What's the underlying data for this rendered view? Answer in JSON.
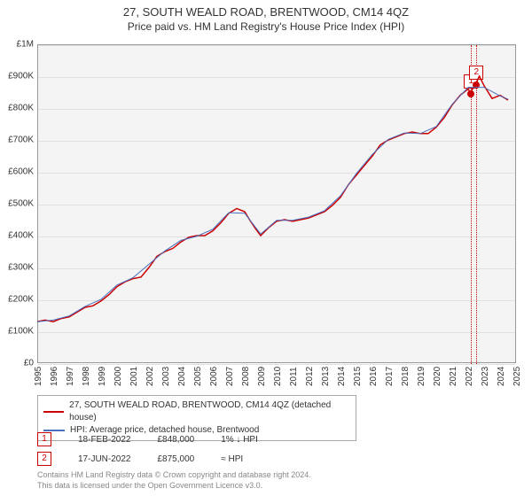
{
  "title": "27, SOUTH WEALD ROAD, BRENTWOOD, CM14 4QZ",
  "subtitle": "Price paid vs. HM Land Registry's House Price Index (HPI)",
  "chart": {
    "type": "line",
    "background_color": "#f4f4f4",
    "grid_color": "#e0e0e0",
    "border_color": "#999999",
    "xlim": [
      1995,
      2025
    ],
    "ylim": [
      0,
      1000000
    ],
    "ytick_step": 100000,
    "yticks": [
      {
        "v": 0,
        "label": "£0"
      },
      {
        "v": 100000,
        "label": "£100K"
      },
      {
        "v": 200000,
        "label": "£200K"
      },
      {
        "v": 300000,
        "label": "£300K"
      },
      {
        "v": 400000,
        "label": "£400K"
      },
      {
        "v": 500000,
        "label": "£500K"
      },
      {
        "v": 600000,
        "label": "£600K"
      },
      {
        "v": 700000,
        "label": "£700K"
      },
      {
        "v": 800000,
        "label": "£800K"
      },
      {
        "v": 900000,
        "label": "£900K"
      },
      {
        "v": 1000000,
        "label": "£1M"
      }
    ],
    "xticks": [
      1995,
      1996,
      1997,
      1998,
      1999,
      2000,
      2001,
      2002,
      2003,
      2004,
      2005,
      2006,
      2007,
      2008,
      2009,
      2010,
      2011,
      2012,
      2013,
      2014,
      2015,
      2016,
      2017,
      2018,
      2019,
      2020,
      2021,
      2022,
      2023,
      2024,
      2025
    ],
    "series": [
      {
        "name": "price_paid",
        "color": "#cc0000",
        "line_width": 1.5,
        "points": [
          [
            1995,
            130000
          ],
          [
            1995.5,
            135000
          ],
          [
            1996,
            130000
          ],
          [
            1996.5,
            140000
          ],
          [
            1997,
            145000
          ],
          [
            1997.5,
            160000
          ],
          [
            1998,
            175000
          ],
          [
            1998.5,
            180000
          ],
          [
            1999,
            195000
          ],
          [
            1999.5,
            215000
          ],
          [
            2000,
            240000
          ],
          [
            2000.5,
            255000
          ],
          [
            2001,
            265000
          ],
          [
            2001.5,
            270000
          ],
          [
            2002,
            300000
          ],
          [
            2002.5,
            335000
          ],
          [
            2003,
            350000
          ],
          [
            2003.5,
            360000
          ],
          [
            2004,
            380000
          ],
          [
            2004.5,
            395000
          ],
          [
            2005,
            400000
          ],
          [
            2005.5,
            400000
          ],
          [
            2006,
            415000
          ],
          [
            2006.5,
            440000
          ],
          [
            2007,
            470000
          ],
          [
            2007.5,
            485000
          ],
          [
            2008,
            475000
          ],
          [
            2008.3,
            450000
          ],
          [
            2008.7,
            420000
          ],
          [
            2009,
            400000
          ],
          [
            2009.5,
            425000
          ],
          [
            2010,
            445000
          ],
          [
            2010.5,
            450000
          ],
          [
            2011,
            445000
          ],
          [
            2011.5,
            450000
          ],
          [
            2012,
            455000
          ],
          [
            2012.5,
            465000
          ],
          [
            2013,
            475000
          ],
          [
            2013.5,
            495000
          ],
          [
            2014,
            520000
          ],
          [
            2014.5,
            560000
          ],
          [
            2015,
            590000
          ],
          [
            2015.5,
            620000
          ],
          [
            2016,
            650000
          ],
          [
            2016.5,
            685000
          ],
          [
            2017,
            700000
          ],
          [
            2017.5,
            710000
          ],
          [
            2018,
            720000
          ],
          [
            2018.5,
            725000
          ],
          [
            2019,
            720000
          ],
          [
            2019.5,
            720000
          ],
          [
            2020,
            740000
          ],
          [
            2020.5,
            770000
          ],
          [
            2021,
            810000
          ],
          [
            2021.5,
            840000
          ],
          [
            2022,
            860000
          ],
          [
            2022.13,
            848000
          ],
          [
            2022.46,
            875000
          ],
          [
            2022.7,
            900000
          ],
          [
            2023,
            870000
          ],
          [
            2023.5,
            830000
          ],
          [
            2024,
            840000
          ],
          [
            2024.5,
            825000
          ]
        ]
      },
      {
        "name": "hpi",
        "color": "#4a6fbf",
        "line_width": 1,
        "points": [
          [
            1995,
            130000
          ],
          [
            1996,
            135000
          ],
          [
            1997,
            148000
          ],
          [
            1998,
            178000
          ],
          [
            1999,
            200000
          ],
          [
            2000,
            245000
          ],
          [
            2001,
            268000
          ],
          [
            2002,
            310000
          ],
          [
            2003,
            352000
          ],
          [
            2004,
            385000
          ],
          [
            2005,
            398000
          ],
          [
            2006,
            420000
          ],
          [
            2007,
            472000
          ],
          [
            2008,
            470000
          ],
          [
            2009,
            405000
          ],
          [
            2010,
            448000
          ],
          [
            2011,
            448000
          ],
          [
            2012,
            458000
          ],
          [
            2013,
            478000
          ],
          [
            2014,
            525000
          ],
          [
            2015,
            595000
          ],
          [
            2016,
            655000
          ],
          [
            2017,
            702000
          ],
          [
            2018,
            722000
          ],
          [
            2019,
            720000
          ],
          [
            2020,
            742000
          ],
          [
            2021,
            812000
          ],
          [
            2022,
            865000
          ],
          [
            2023,
            865000
          ],
          [
            2024,
            838000
          ],
          [
            2024.5,
            828000
          ]
        ]
      }
    ],
    "sale_markers": [
      {
        "n": "1",
        "x": 2022.13,
        "y": 848000,
        "color": "#cc0000"
      },
      {
        "n": "2",
        "x": 2022.46,
        "y": 875000,
        "color": "#cc0000"
      }
    ],
    "dotted_vlines": [
      2022.13,
      2022.46
    ],
    "dotted_color": "#cc0000"
  },
  "legend": {
    "items": [
      {
        "color": "#cc0000",
        "label": "27, SOUTH WEALD ROAD, BRENTWOOD, CM14 4QZ (detached house)"
      },
      {
        "color": "#4a6fbf",
        "label": "HPI: Average price, detached house, Brentwood"
      }
    ]
  },
  "sales": [
    {
      "n": "1",
      "date": "18-FEB-2022",
      "price": "£848,000",
      "change": "1% ↓ HPI"
    },
    {
      "n": "2",
      "date": "17-JUN-2022",
      "price": "£875,000",
      "change": "≈ HPI"
    }
  ],
  "footer_line1": "Contains HM Land Registry data © Crown copyright and database right 2024.",
  "footer_line2": "This data is licensed under the Open Government Licence v3.0."
}
